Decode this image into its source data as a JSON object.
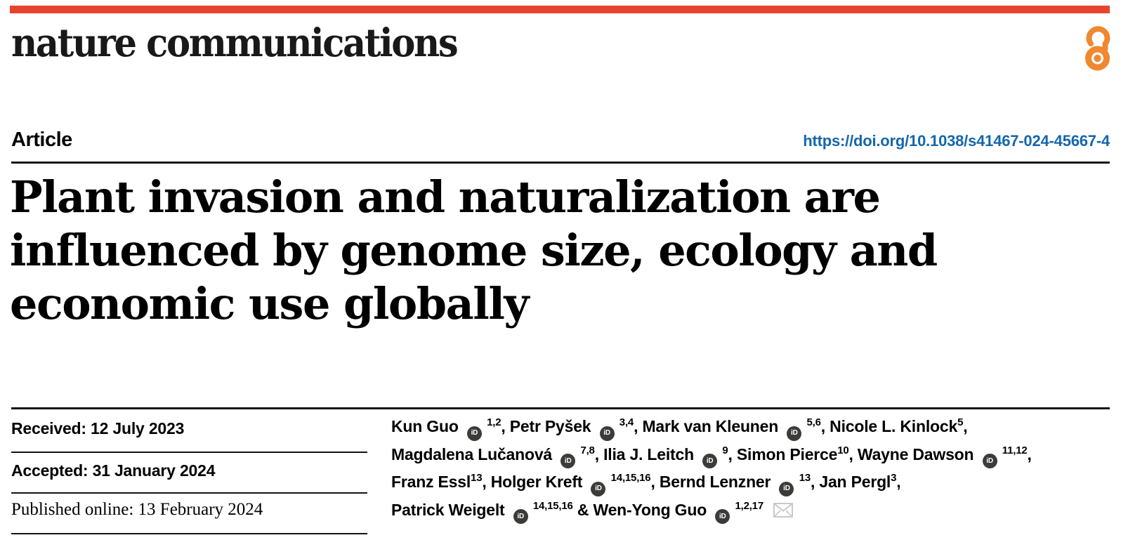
{
  "colors": {
    "brand_red": "#e8442d",
    "doi_blue": "#1467ac",
    "oa_orange": "#f0882f",
    "orcid_fill": "#3b3b3a",
    "envelope_gray": "#c9c9c9",
    "rule_dark": "#161616"
  },
  "icons": {
    "orcid_label": "iD"
  },
  "masthead": {
    "journal_name": "nature communications"
  },
  "article": {
    "kicker": "Article",
    "doi": "https://doi.org/10.1038/s41467-024-45667-4",
    "title_lines": [
      "Plant invasion and naturalization are",
      "influenced by genome size, ecology and",
      "economic use globally"
    ]
  },
  "history": {
    "received": "Received: 12 July 2023",
    "accepted": "Accepted: 31 January 2024",
    "published_online": "Published online: 13 February 2024"
  },
  "authors": {
    "lines": [
      [
        {
          "name": "Kun Guo",
          "orcid": true,
          "sup": "1,2",
          "sep": ", "
        },
        {
          "name": "Petr Pyšek",
          "orcid": true,
          "sup": "3,4",
          "sep": ", "
        },
        {
          "name": "Mark van Kleunen",
          "orcid": true,
          "sup": "5,6",
          "sep": ", "
        },
        {
          "name": "Nicole L. Kinlock",
          "orcid": false,
          "sup": "5",
          "sep": ","
        }
      ],
      [
        {
          "name": "Magdalena Lučanová",
          "orcid": true,
          "sup": "7,8",
          "sep": ", "
        },
        {
          "name": "Ilia J. Leitch",
          "orcid": true,
          "sup": "9",
          "sep": ", "
        },
        {
          "name": "Simon Pierce",
          "orcid": false,
          "sup": "10",
          "sep": ", "
        },
        {
          "name": "Wayne Dawson",
          "orcid": true,
          "sup": "11,12",
          "sep": ","
        }
      ],
      [
        {
          "name": "Franz Essl",
          "orcid": false,
          "sup": "13",
          "sep": ", "
        },
        {
          "name": "Holger Kreft",
          "orcid": true,
          "sup": "14,15,16",
          "sep": ", "
        },
        {
          "name": "Bernd Lenzner",
          "orcid": true,
          "sup": "13",
          "sep": ", "
        },
        {
          "name": "Jan Pergl",
          "orcid": false,
          "sup": "3",
          "sep": ","
        }
      ],
      [
        {
          "name": "Patrick Weigelt",
          "orcid": true,
          "sup": "14,15,16",
          "sep": " & "
        },
        {
          "name": "Wen-Yong Guo",
          "orcid": true,
          "sup": "1,2,17",
          "sep": "",
          "email": true
        }
      ]
    ]
  }
}
